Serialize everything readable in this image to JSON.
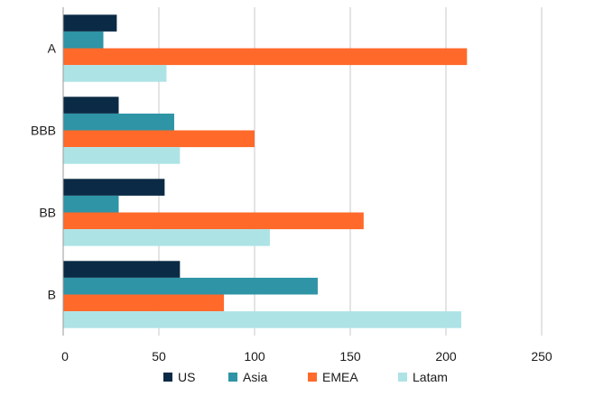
{
  "chart_data": {
    "type": "bar",
    "orientation": "horizontal",
    "categories": [
      "A",
      "BBB",
      "BB",
      "B"
    ],
    "series": [
      {
        "name": "US",
        "color": "#0b2a45",
        "values": [
          28,
          29,
          53,
          61
        ]
      },
      {
        "name": "Asia",
        "color": "#2e94a6",
        "values": [
          21,
          58,
          29,
          133
        ]
      },
      {
        "name": "EMEA",
        "color": "#ff6a2b",
        "values": [
          211,
          100,
          157,
          84
        ]
      },
      {
        "name": "Latam",
        "color": "#aee3e6",
        "values": [
          54,
          61,
          108,
          208
        ]
      }
    ],
    "xlim": [
      0,
      250
    ],
    "xticks": [
      0,
      50,
      100,
      150,
      200,
      250
    ],
    "grid": "vertical",
    "legend_position": "bottom"
  }
}
